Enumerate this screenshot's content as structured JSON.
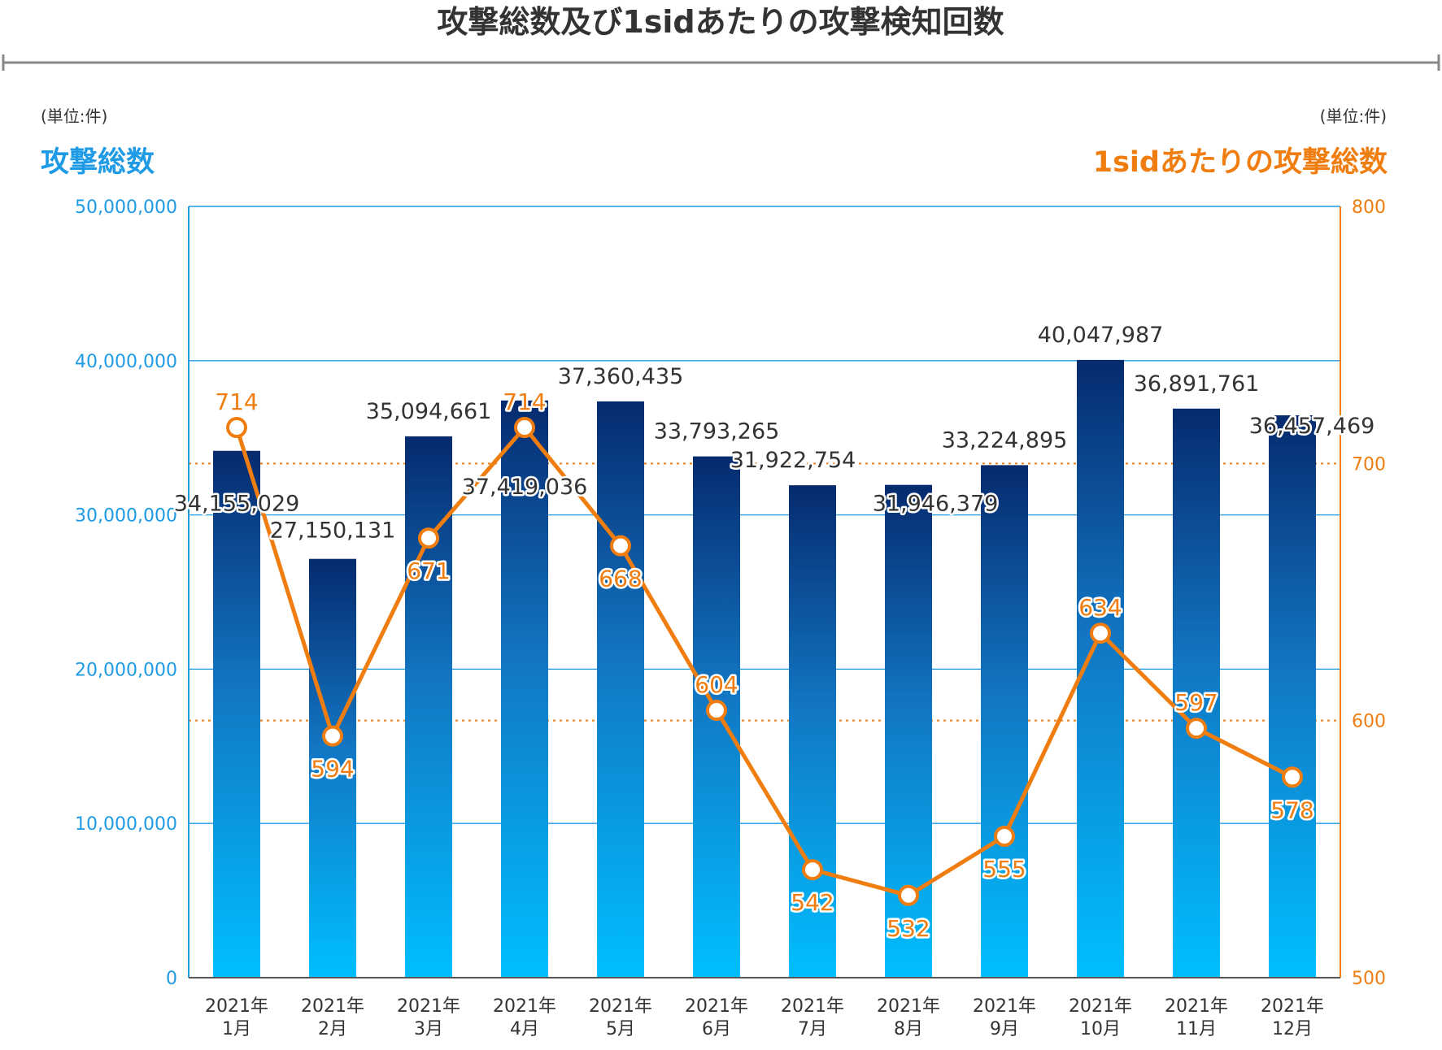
{
  "chart_data": {
    "type": "bar+line",
    "title": "攻撃総数及び1sidあたりの攻撃検知回数",
    "categories": [
      [
        "2021年",
        "1月"
      ],
      [
        "2021年",
        "2月"
      ],
      [
        "2021年",
        "3月"
      ],
      [
        "2021年",
        "4月"
      ],
      [
        "2021年",
        "5月"
      ],
      [
        "2021年",
        "6月"
      ],
      [
        "2021年",
        "7月"
      ],
      [
        "2021年",
        "8月"
      ],
      [
        "2021年",
        "9月"
      ],
      [
        "2021年",
        "10月"
      ],
      [
        "2021年",
        "11月"
      ],
      [
        "2021年",
        "12月"
      ]
    ],
    "left_axis": {
      "unit": "(単位:件)",
      "label": "攻撃総数",
      "range": [
        0,
        50000000
      ],
      "ticks": [
        "0",
        "10,000,000",
        "20,000,000",
        "30,000,000",
        "40,000,000",
        "50,000,000"
      ],
      "tick_values": [
        0,
        10000000,
        20000000,
        30000000,
        40000000,
        50000000
      ]
    },
    "right_axis": {
      "unit": "(単位:件)",
      "label": "1sidあたりの攻撃総数",
      "range": [
        500,
        800
      ],
      "ticks": [
        "500",
        "600",
        "700",
        "800"
      ],
      "tick_values": [
        500,
        600,
        700,
        800
      ]
    },
    "series": [
      {
        "type": "bar",
        "axis": "left",
        "values": [
          34155029,
          27150131,
          35094661,
          37419036,
          37360435,
          33793265,
          31922754,
          31946379,
          33224895,
          40047987,
          36891761,
          36457469
        ],
        "labels": [
          "34,155,029",
          "27,150,131",
          "35,094,661",
          "37,419,036",
          "37,360,435",
          "33,793,265",
          "31,922,754",
          "31,946,379",
          "33,224,895",
          "40,047,987",
          "36,891,761",
          "36,457,469"
        ]
      },
      {
        "type": "line",
        "axis": "right",
        "values": [
          714,
          594,
          671,
          714,
          668,
          604,
          542,
          532,
          555,
          634,
          597,
          578
        ],
        "labels": [
          "714",
          "594",
          "671",
          "714",
          "668",
          "604",
          "542",
          "532",
          "555",
          "634",
          "597",
          "578"
        ]
      }
    ],
    "reference_lines_right": [
      600,
      700
    ],
    "colors": {
      "left_axis": "#1f9be6",
      "right_axis": "#f07d10",
      "bar_top": "#062a6e",
      "bar_bottom": "#00bfff",
      "text": "#333333"
    },
    "grid": true
  }
}
